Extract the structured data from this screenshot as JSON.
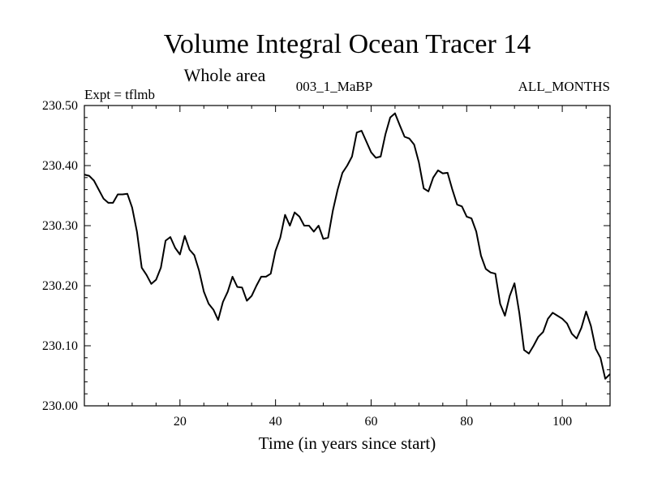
{
  "chart_data": {
    "type": "line",
    "title": "Volume Integral Ocean Tracer 14",
    "subtitle": "Whole area",
    "left_label": "Expt = tflmb",
    "center_label": "003_1_MaBP",
    "right_label": "ALL_MONTHS",
    "xlabel": "Time (in years since start)",
    "ylabel": "",
    "xlim": [
      0,
      110
    ],
    "ylim": [
      230.0,
      230.5
    ],
    "x_ticks": [
      20,
      40,
      60,
      80,
      100
    ],
    "y_ticks": [
      "230.00",
      "230.10",
      "230.20",
      "230.30",
      "230.40",
      "230.50"
    ],
    "grid": false,
    "series": [
      {
        "name": "",
        "x": [
          0,
          1,
          2,
          3,
          4,
          5,
          6,
          7,
          8,
          9,
          10,
          11,
          12,
          13,
          14,
          15,
          16,
          17,
          18,
          19,
          20,
          21,
          22,
          23,
          24,
          25,
          26,
          27,
          28,
          29,
          30,
          31,
          32,
          33,
          34,
          35,
          36,
          37,
          38,
          39,
          40,
          41,
          42,
          43,
          44,
          45,
          46,
          47,
          48,
          49,
          50,
          51,
          52,
          53,
          54,
          55,
          56,
          57,
          58,
          59,
          60,
          61,
          62,
          63,
          64,
          65,
          66,
          67,
          68,
          69,
          70,
          71,
          72,
          73,
          74,
          75,
          76,
          77,
          78,
          79,
          80,
          81,
          82,
          83,
          84,
          85,
          86,
          87,
          88,
          89,
          90,
          91,
          92,
          93,
          94,
          95,
          96,
          97,
          98,
          99,
          100,
          101,
          102,
          103,
          104,
          105,
          106,
          107,
          108,
          109,
          110
        ],
        "values": [
          230.385,
          230.383,
          230.375,
          230.36,
          230.345,
          230.338,
          230.338,
          230.352,
          230.352,
          230.353,
          230.33,
          230.29,
          230.23,
          230.218,
          230.203,
          230.21,
          230.23,
          230.275,
          230.281,
          230.263,
          230.252,
          230.283,
          230.26,
          230.251,
          230.225,
          230.19,
          230.17,
          230.16,
          230.143,
          230.173,
          230.19,
          230.215,
          230.198,
          230.197,
          230.175,
          230.183,
          230.2,
          230.215,
          230.215,
          230.22,
          230.258,
          230.28,
          230.318,
          230.3,
          230.322,
          230.315,
          230.3,
          230.3,
          230.29,
          230.3,
          230.278,
          230.28,
          230.325,
          230.36,
          230.388,
          230.4,
          230.415,
          230.455,
          230.458,
          230.44,
          230.422,
          230.413,
          230.415,
          230.452,
          230.48,
          230.487,
          230.467,
          230.448,
          230.445,
          230.435,
          230.405,
          230.362,
          230.357,
          230.38,
          230.392,
          230.387,
          230.388,
          230.36,
          230.335,
          230.332,
          230.315,
          230.312,
          230.29,
          230.25,
          230.228,
          230.222,
          230.22,
          230.17,
          230.15,
          230.183,
          230.204,
          230.155,
          230.093,
          230.087,
          230.1,
          230.115,
          230.123,
          230.145,
          230.155,
          230.15,
          230.145,
          230.137,
          230.12,
          230.112,
          230.13,
          230.157,
          230.133,
          230.095,
          230.08,
          230.045,
          230.053
        ]
      }
    ]
  }
}
